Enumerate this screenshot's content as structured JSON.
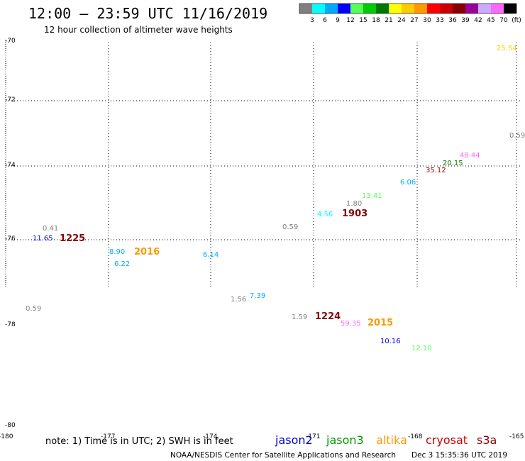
{
  "header": {
    "title": "12:00 – 23:59 UTC 11/16/2019",
    "subtitle": "12 hour collection of altimeter wave heights"
  },
  "color_scale": {
    "swatches": [
      "#808080",
      "#00ffff",
      "#00aaff",
      "#0000ff",
      "#55ff55",
      "#00cc00",
      "#007700",
      "#ffff00",
      "#ffcc00",
      "#ff9900",
      "#ff0000",
      "#cc0000",
      "#880000",
      "#990099",
      "#ccaaff",
      "#ff66ff",
      "#000000"
    ],
    "labels": [
      "3",
      "6",
      "9",
      "12",
      "15",
      "18",
      "21",
      "24",
      "27",
      "30",
      "33",
      "36",
      "39",
      "42",
      "45",
      "70",
      "(ft)"
    ]
  },
  "axes": {
    "lat_labels": [
      "-70",
      "-72",
      "-74",
      "-76",
      "-78",
      "-80"
    ],
    "lon_labels": [
      "-180",
      "-177",
      "-174",
      "-171",
      "-168",
      "-165"
    ]
  },
  "observations": [
    {
      "text": "25.54",
      "color": "#ffcc00"
    },
    {
      "text": "0.59",
      "color": "#808080"
    },
    {
      "text": "48.44",
      "color": "#ff66ff"
    },
    {
      "text": "20.15",
      "color": "#007700"
    },
    {
      "text": "35.12",
      "color": "#880000"
    },
    {
      "text": "6.06",
      "color": "#00aaff"
    },
    {
      "text": "13.41",
      "color": "#55ff55"
    },
    {
      "text": "1.80",
      "color": "#808080"
    },
    {
      "text": "4.56",
      "color": "#00ffff"
    },
    {
      "text": "0.59",
      "color": "#808080"
    },
    {
      "text": "0.41",
      "color": "#808080"
    },
    {
      "text": "11.65",
      "color": "#0000ff"
    },
    {
      "text": "8.90",
      "color": "#00aaff"
    },
    {
      "text": "6.22",
      "color": "#00aaff"
    },
    {
      "text": "6.14",
      "color": "#00aaff"
    },
    {
      "text": "7.39",
      "color": "#00aaff"
    },
    {
      "text": "1.56",
      "color": "#808080"
    },
    {
      "text": "0.59",
      "color": "#808080"
    },
    {
      "text": "1.59",
      "color": "#808080"
    },
    {
      "text": "59.35",
      "color": "#ff66ff"
    },
    {
      "text": "10.16",
      "color": "#0000ff"
    },
    {
      "text": "12.10",
      "color": "#55ff55"
    }
  ],
  "time_labels": [
    {
      "text": "1225",
      "color": "#880000"
    },
    {
      "text": "2016",
      "color": "#ff9900"
    },
    {
      "text": "1903",
      "color": "#880000"
    },
    {
      "text": "1224",
      "color": "#880000"
    },
    {
      "text": "2015",
      "color": "#ff9900"
    }
  ],
  "footer": {
    "note": "note: 1) Time is in UTC; 2) SWH is in feet",
    "satellites": [
      {
        "name": "jason2",
        "color": "#0000cc"
      },
      {
        "name": "jason3",
        "color": "#009900"
      },
      {
        "name": "altika",
        "color": "#ff9900"
      },
      {
        "name": "cryosat",
        "color": "#cc0000"
      },
      {
        "name": "s3a",
        "color": "#880000"
      }
    ],
    "credit": "NOAA/NESDIS Center for Satellite Applications and Research",
    "timestamp": "Dec  3 15:35:36 UTC 2019"
  }
}
